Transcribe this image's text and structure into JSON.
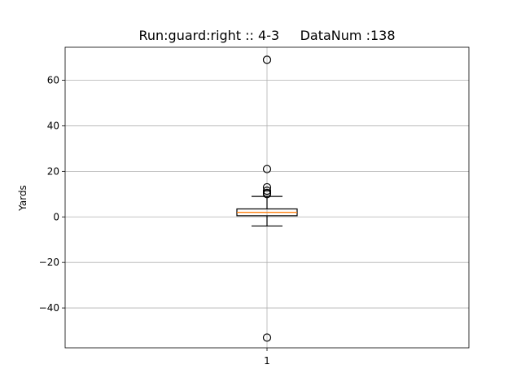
{
  "chart_data": {
    "type": "box",
    "title": "Run:guard:right :: 4-3     DataNum :138",
    "xlabel": "",
    "ylabel": "Yards",
    "categories": [
      "1"
    ],
    "ylim": [
      -57.5,
      74.5
    ],
    "yticks": [
      -40,
      -20,
      0,
      20,
      40,
      60
    ],
    "ytick_labels": [
      "−40",
      "−20",
      "0",
      "20",
      "40",
      "60"
    ],
    "grid": true,
    "box": {
      "whisker_low": -4,
      "q1": 0.5,
      "median": 2,
      "q3": 3.5,
      "whisker_high": 9,
      "outliers": [
        69,
        21,
        13,
        11.5,
        10.5,
        10,
        -53
      ]
    },
    "colors": {
      "box": "#000000",
      "median": "#ff7f0e",
      "grid": "#b0b0b0"
    }
  }
}
